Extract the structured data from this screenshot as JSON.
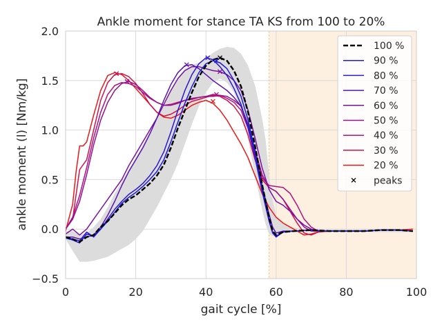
{
  "chart_data": {
    "type": "line",
    "title": "Ankle moment for stance TA KS from 100 to 20%",
    "xlabel": "gait cycle [%]",
    "ylabel": "ankle moment (l) [Nm/kg]",
    "xlim": [
      0,
      100
    ],
    "ylim": [
      -0.5,
      2.0
    ],
    "xticks": [
      0,
      20,
      40,
      60,
      80,
      100
    ],
    "xtick_labels": [
      "0",
      "20",
      "40",
      "60",
      "80",
      "100"
    ],
    "yticks": [
      -0.5,
      0.0,
      0.5,
      1.0,
      1.5,
      2.0
    ],
    "ytick_labels": [
      "−0.5",
      "0.0",
      "0.5",
      "1.0",
      "1.5",
      "2.0"
    ],
    "grid": true,
    "legend_position": "top-right",
    "shaded_region": {
      "x_start": 58,
      "x_end": 100,
      "color": "#fdf0e0"
    },
    "band": {
      "color": "#dcdcdc",
      "x": [
        0,
        2,
        4,
        6,
        8,
        10,
        12,
        14,
        16,
        18,
        20,
        22,
        24,
        26,
        28,
        30,
        32,
        34,
        36,
        38,
        40,
        42,
        44,
        46,
        48,
        50,
        52,
        54,
        56,
        57,
        58,
        59,
        60,
        62,
        64,
        66,
        68,
        70,
        72,
        74,
        76,
        78,
        80,
        85,
        90,
        95,
        99
      ],
      "upper": [
        -0.02,
        -0.02,
        -0.06,
        -0.04,
        0.02,
        0.1,
        0.22,
        0.36,
        0.48,
        0.6,
        0.72,
        0.85,
        0.98,
        1.12,
        1.26,
        1.4,
        1.53,
        1.62,
        1.66,
        1.68,
        1.72,
        1.78,
        1.82,
        1.84,
        1.83,
        1.77,
        1.65,
        1.45,
        1.12,
        0.9,
        0.55,
        0.3,
        0.13,
        0.05,
        0.02,
        0.01,
        0.0,
        0.0,
        0.0,
        0.0,
        0.0,
        0.0,
        0.0,
        0.0,
        0.0,
        0.0,
        0.0
      ],
      "lower": [
        -0.1,
        -0.22,
        -0.33,
        -0.33,
        -0.32,
        -0.3,
        -0.28,
        -0.24,
        -0.2,
        -0.16,
        -0.1,
        -0.02,
        0.1,
        0.22,
        0.36,
        0.5,
        0.66,
        0.86,
        1.06,
        1.24,
        1.38,
        1.48,
        1.52,
        1.48,
        1.38,
        1.2,
        0.9,
        0.55,
        0.2,
        0.05,
        -0.05,
        -0.07,
        -0.06,
        -0.04,
        -0.03,
        -0.03,
        -0.03,
        -0.03,
        -0.03,
        -0.03,
        -0.03,
        -0.03,
        -0.03,
        -0.03,
        -0.03,
        -0.03,
        -0.03
      ]
    },
    "series": [
      {
        "name": "100 %",
        "color": "#000000",
        "dashed": true,
        "width": 2.5,
        "x": [
          0,
          2,
          4,
          6,
          8,
          10,
          12,
          14,
          16,
          18,
          20,
          22,
          24,
          26,
          28,
          30,
          32,
          34,
          36,
          38,
          40,
          42,
          44,
          46,
          48,
          50,
          52,
          54,
          56,
          58,
          59,
          60,
          62,
          65,
          70,
          75,
          80,
          85,
          90,
          95,
          99
        ],
        "y": [
          -0.08,
          -0.1,
          -0.13,
          -0.08,
          -0.06,
          0.02,
          0.08,
          0.16,
          0.24,
          0.3,
          0.34,
          0.4,
          0.46,
          0.54,
          0.65,
          0.82,
          1.02,
          1.2,
          1.38,
          1.54,
          1.65,
          1.71,
          1.73,
          1.7,
          1.6,
          1.44,
          1.18,
          0.84,
          0.45,
          0.12,
          -0.02,
          -0.06,
          -0.03,
          -0.02,
          -0.01,
          -0.02,
          -0.02,
          -0.02,
          -0.01,
          -0.01,
          -0.02
        ],
        "peak": [
          44,
          1.73
        ]
      },
      {
        "name": "90 %",
        "color": "#1a1adb",
        "dashed": false,
        "width": 1.5,
        "x": [
          0,
          2,
          4,
          6,
          8,
          10,
          12,
          14,
          16,
          18,
          20,
          22,
          24,
          26,
          28,
          30,
          32,
          34,
          36,
          38,
          40,
          42,
          44,
          46,
          48,
          50,
          52,
          54,
          56,
          58,
          59,
          60,
          62,
          65,
          70,
          75,
          80,
          85,
          90,
          95,
          99
        ],
        "y": [
          -0.09,
          -0.11,
          -0.14,
          -0.05,
          -0.07,
          0.0,
          0.08,
          0.17,
          0.26,
          0.32,
          0.37,
          0.43,
          0.5,
          0.58,
          0.7,
          0.88,
          1.08,
          1.27,
          1.44,
          1.58,
          1.67,
          1.7,
          1.68,
          1.62,
          1.5,
          1.34,
          1.1,
          0.78,
          0.42,
          0.1,
          -0.03,
          -0.07,
          -0.03,
          -0.02,
          -0.01,
          -0.02,
          -0.02,
          -0.02,
          -0.01,
          -0.01,
          -0.02
        ],
        "peak": [
          43,
          1.7
        ]
      },
      {
        "name": "80 %",
        "color": "#2b16cc",
        "dashed": false,
        "width": 1.5,
        "x": [
          0,
          2,
          4,
          6,
          8,
          10,
          12,
          14,
          16,
          18,
          20,
          22,
          24,
          26,
          28,
          30,
          32,
          34,
          36,
          38,
          40,
          42,
          44,
          46,
          48,
          50,
          52,
          54,
          56,
          58,
          59,
          60,
          62,
          65,
          70,
          75,
          80,
          85,
          90,
          95,
          99
        ],
        "y": [
          -0.08,
          -0.1,
          -0.12,
          -0.03,
          -0.08,
          0.0,
          0.1,
          0.2,
          0.28,
          0.35,
          0.4,
          0.46,
          0.54,
          0.64,
          0.78,
          0.98,
          1.2,
          1.4,
          1.56,
          1.67,
          1.73,
          1.71,
          1.64,
          1.55,
          1.42,
          1.26,
          1.02,
          0.72,
          0.38,
          0.08,
          -0.04,
          -0.08,
          -0.03,
          -0.02,
          -0.01,
          -0.02,
          -0.02,
          -0.02,
          -0.01,
          -0.01,
          -0.02
        ],
        "peak": [
          40.5,
          1.73
        ]
      },
      {
        "name": "70 %",
        "color": "#5a12b0",
        "dashed": false,
        "width": 1.5,
        "x": [
          0,
          2,
          4,
          6,
          8,
          10,
          12,
          14,
          16,
          18,
          20,
          22,
          24,
          26,
          28,
          30,
          32,
          34,
          36,
          38,
          40,
          42,
          44,
          46,
          48,
          50,
          52,
          54,
          56,
          58,
          59,
          60,
          62,
          65,
          70,
          75,
          80,
          85,
          90,
          95,
          99
        ],
        "y": [
          -0.08,
          -0.08,
          -0.1,
          -0.08,
          -0.06,
          0.02,
          0.14,
          0.28,
          0.44,
          0.58,
          0.7,
          0.82,
          0.96,
          1.12,
          1.3,
          1.46,
          1.58,
          1.65,
          1.66,
          1.62,
          1.56,
          1.5,
          1.45,
          1.4,
          1.33,
          1.24,
          1.04,
          0.78,
          0.44,
          0.15,
          0.02,
          -0.04,
          -0.02,
          -0.02,
          -0.01,
          -0.02,
          -0.02,
          -0.02,
          -0.01,
          -0.01,
          -0.02
        ],
        "peak": [
          34.5,
          1.66
        ]
      },
      {
        "name": "60 %",
        "color": "#7a10a0",
        "dashed": false,
        "width": 1.5,
        "x": [
          0,
          2,
          4,
          6,
          8,
          10,
          12,
          14,
          16,
          18,
          20,
          22,
          24,
          26,
          28,
          30,
          32,
          34,
          36,
          38,
          40,
          42,
          44,
          46,
          48,
          50,
          52,
          54,
          56,
          58,
          60,
          62,
          64,
          66,
          68,
          70,
          72,
          75,
          80,
          85,
          90,
          95,
          99
        ],
        "y": [
          -0.05,
          0.0,
          -0.06,
          0.0,
          0.1,
          0.2,
          0.3,
          0.4,
          0.5,
          0.64,
          0.76,
          0.88,
          1.0,
          1.12,
          1.26,
          1.4,
          1.52,
          1.6,
          1.64,
          1.64,
          1.62,
          1.6,
          1.59,
          1.56,
          1.5,
          1.4,
          1.2,
          0.92,
          0.62,
          0.4,
          0.28,
          0.24,
          0.18,
          0.1,
          0.04,
          0.0,
          -0.02,
          -0.02,
          -0.02,
          -0.02,
          -0.01,
          -0.01,
          -0.02
        ],
        "peak": [
          44,
          1.59
        ]
      },
      {
        "name": "50 %",
        "color": "#951090",
        "dashed": false,
        "width": 1.5,
        "x": [
          0,
          2,
          4,
          6,
          8,
          10,
          12,
          14,
          16,
          18,
          20,
          22,
          24,
          26,
          28,
          30,
          32,
          34,
          36,
          38,
          40,
          42,
          44,
          46,
          48,
          50,
          52,
          54,
          56,
          58,
          60,
          62,
          64,
          66,
          68,
          70,
          72,
          75,
          80,
          85,
          90,
          95,
          99
        ],
        "y": [
          0.0,
          0.1,
          0.28,
          0.55,
          0.85,
          1.1,
          1.28,
          1.4,
          1.47,
          1.49,
          1.46,
          1.4,
          1.33,
          1.28,
          1.25,
          1.25,
          1.27,
          1.3,
          1.32,
          1.33,
          1.34,
          1.34,
          1.35,
          1.34,
          1.3,
          1.24,
          1.06,
          0.8,
          0.55,
          0.42,
          0.38,
          0.3,
          0.2,
          0.1,
          0.02,
          -0.02,
          -0.02,
          -0.02,
          -0.02,
          -0.02,
          -0.01,
          -0.01,
          -0.02
        ],
        "peak": [
          17.5,
          1.49
        ]
      },
      {
        "name": "40 %",
        "color": "#b0107c",
        "dashed": false,
        "width": 1.5,
        "x": [
          0,
          2,
          4,
          6,
          8,
          10,
          12,
          14,
          16,
          18,
          20,
          22,
          24,
          26,
          28,
          30,
          32,
          34,
          36,
          38,
          40,
          42,
          44,
          46,
          48,
          50,
          52,
          54,
          56,
          58,
          60,
          62,
          64,
          66,
          68,
          70,
          72,
          75,
          80,
          85,
          90,
          95,
          99
        ],
        "y": [
          0.0,
          0.12,
          0.34,
          0.62,
          0.92,
          1.18,
          1.36,
          1.45,
          1.48,
          1.47,
          1.44,
          1.38,
          1.32,
          1.28,
          1.25,
          1.26,
          1.28,
          1.3,
          1.31,
          1.33,
          1.34,
          1.36,
          1.35,
          1.32,
          1.28,
          1.2,
          1.02,
          0.76,
          0.52,
          0.44,
          0.43,
          0.42,
          0.36,
          0.24,
          0.1,
          0.02,
          -0.02,
          -0.02,
          -0.02,
          -0.02,
          -0.01,
          -0.01,
          -0.02
        ],
        "peak": [
          43,
          1.36
        ]
      },
      {
        "name": "30 %",
        "color": "#d0104a",
        "dashed": false,
        "width": 1.5,
        "x": [
          0,
          2,
          4,
          6,
          8,
          10,
          12,
          14,
          16,
          18,
          20,
          22,
          24,
          26,
          28,
          30,
          32,
          34,
          36,
          38,
          40,
          42,
          44,
          46,
          48,
          50,
          52,
          54,
          56,
          58,
          60,
          62,
          64,
          66,
          68,
          70,
          72,
          75,
          80,
          85,
          90,
          95,
          99
        ],
        "y": [
          0.0,
          0.1,
          0.6,
          0.7,
          1.0,
          1.3,
          1.48,
          1.56,
          1.57,
          1.54,
          1.47,
          1.37,
          1.26,
          1.18,
          1.14,
          1.16,
          1.2,
          1.25,
          1.29,
          1.31,
          1.33,
          1.35,
          1.34,
          1.3,
          1.24,
          1.14,
          0.95,
          0.7,
          0.5,
          0.42,
          0.38,
          0.3,
          0.18,
          0.06,
          -0.04,
          -0.06,
          -0.03,
          -0.02,
          -0.02,
          -0.02,
          -0.01,
          -0.01,
          -0.02
        ],
        "peak": [
          14.5,
          1.57
        ]
      },
      {
        "name": "20 %",
        "color": "#ee1515",
        "dashed": false,
        "width": 1.5,
        "x": [
          0,
          2,
          3,
          4,
          5,
          6,
          8,
          10,
          12,
          14,
          16,
          18,
          20,
          22,
          24,
          26,
          28,
          30,
          32,
          34,
          36,
          38,
          40,
          42,
          44,
          46,
          48,
          50,
          52,
          54,
          56,
          58,
          60,
          62,
          64,
          66,
          68,
          70,
          72,
          75,
          80,
          85,
          90,
          95,
          99
        ],
        "y": [
          -0.02,
          0.25,
          0.58,
          0.84,
          0.84,
          0.88,
          1.15,
          1.4,
          1.55,
          1.58,
          1.56,
          1.5,
          1.42,
          1.34,
          1.26,
          1.18,
          1.13,
          1.12,
          1.15,
          1.2,
          1.25,
          1.28,
          1.3,
          1.27,
          1.2,
          1.1,
          0.98,
          0.86,
          0.72,
          0.54,
          0.36,
          0.22,
          0.12,
          0.06,
          0.02,
          -0.02,
          -0.06,
          -0.05,
          -0.03,
          -0.02,
          -0.02,
          -0.02,
          -0.01,
          -0.01,
          0.0
        ],
        "peak": [
          42,
          1.29
        ]
      }
    ],
    "legend_entries": [
      "100 %",
      "90 %",
      "80 %",
      "70 %",
      "60 %",
      "50 %",
      "40 %",
      "30 %",
      "20 %",
      "peaks"
    ],
    "peaks_label": "peaks"
  }
}
